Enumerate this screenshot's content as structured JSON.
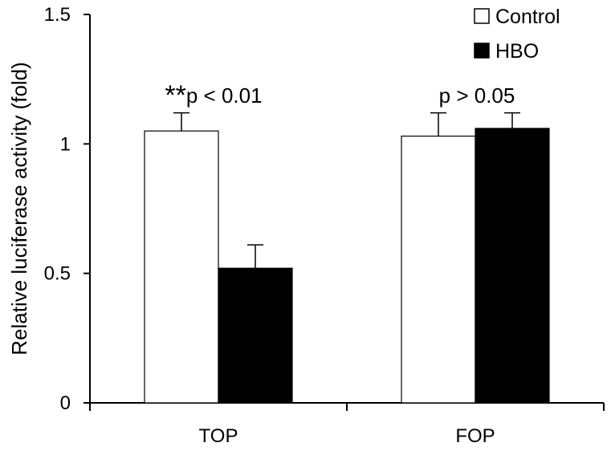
{
  "chart_data": {
    "type": "bar",
    "ylabel": "Relative luciferase activity (fold)",
    "xlabel": "",
    "ylim": [
      0,
      1.5
    ],
    "yticks": [
      "0",
      "0.5",
      "1",
      "1.5"
    ],
    "categories": [
      "TOP",
      "FOP"
    ],
    "series": [
      {
        "name": "Control",
        "values": [
          1.05,
          1.03
        ],
        "errors": [
          0.07,
          0.09
        ],
        "color": "#ffffff"
      },
      {
        "name": "HBO",
        "values": [
          0.52,
          1.06
        ],
        "errors": [
          0.09,
          0.06
        ],
        "color": "#000000"
      }
    ],
    "annotations": [
      {
        "category": "TOP",
        "stars": "**",
        "text": "p < 0.01"
      },
      {
        "category": "FOP",
        "stars": "",
        "text": "p > 0.05"
      }
    ],
    "legend": {
      "placement": "top-right"
    },
    "grid": false
  }
}
